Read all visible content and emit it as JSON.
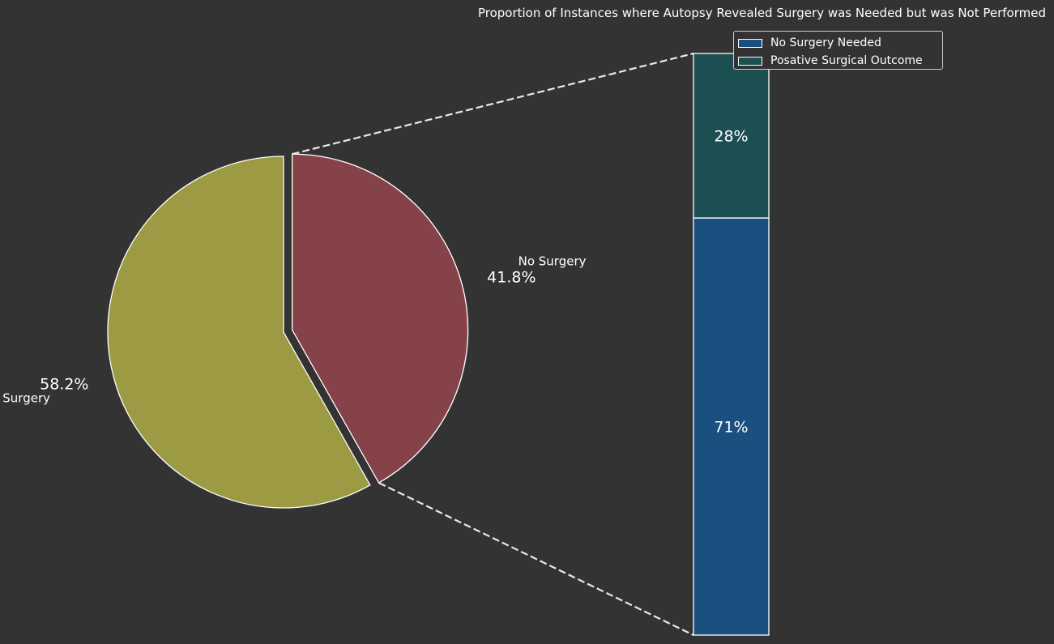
{
  "chart_data": [
    {
      "type": "pie",
      "title": "Proportion of Instances where Autopsy Revealed Surgery was Needed but was Not Performed",
      "slices": [
        {
          "label": "No Surgery",
          "value": 41.8,
          "value_label": "41.8%",
          "color": "#854248",
          "exploded": true
        },
        {
          "label": "Surgery",
          "value": 58.2,
          "value_label": "58.2%",
          "color": "#9c9a42",
          "exploded": false
        }
      ],
      "start_angle_deg": 90,
      "direction": "clockwise",
      "edge_color": "#ffffff"
    },
    {
      "type": "bar",
      "stacked": true,
      "segments": [
        {
          "name": "No Surgery Needed",
          "value": 71,
          "value_label": "71%",
          "color": "#1a4f80"
        },
        {
          "name": "Posative Surgical Outcome",
          "value": 28,
          "value_label": "28%",
          "color": "#1b4f51"
        }
      ],
      "legend_position": "upper-right",
      "connector_style": "dashed"
    }
  ]
}
